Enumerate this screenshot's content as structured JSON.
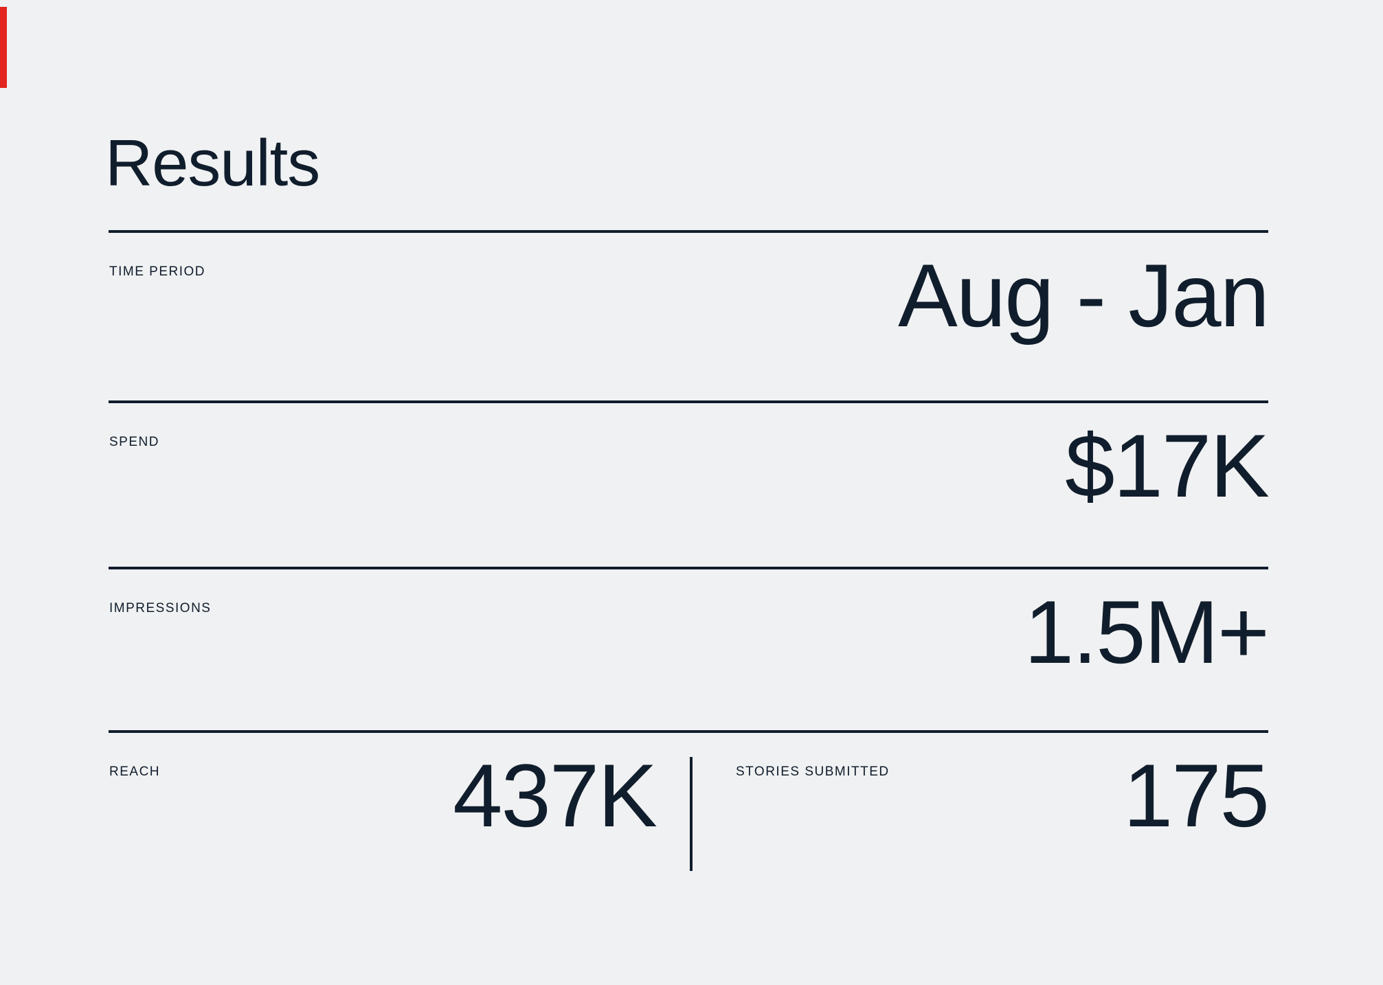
{
  "slide": {
    "title": "Results",
    "colors": {
      "background": "#F0F1F2",
      "text": "#101D2C",
      "accent_red": "#E3241F"
    },
    "rows": [
      {
        "label": "TIME PERIOD",
        "value": "Aug - Jan"
      },
      {
        "label": "SPEND",
        "value": "$17K"
      },
      {
        "label": "IMPRESSIONS",
        "value": "1.5M+"
      }
    ],
    "split_row": {
      "left": {
        "label": "REACH",
        "value": "437K"
      },
      "right": {
        "label": "STORIES SUBMITTED",
        "value": "175"
      }
    }
  }
}
